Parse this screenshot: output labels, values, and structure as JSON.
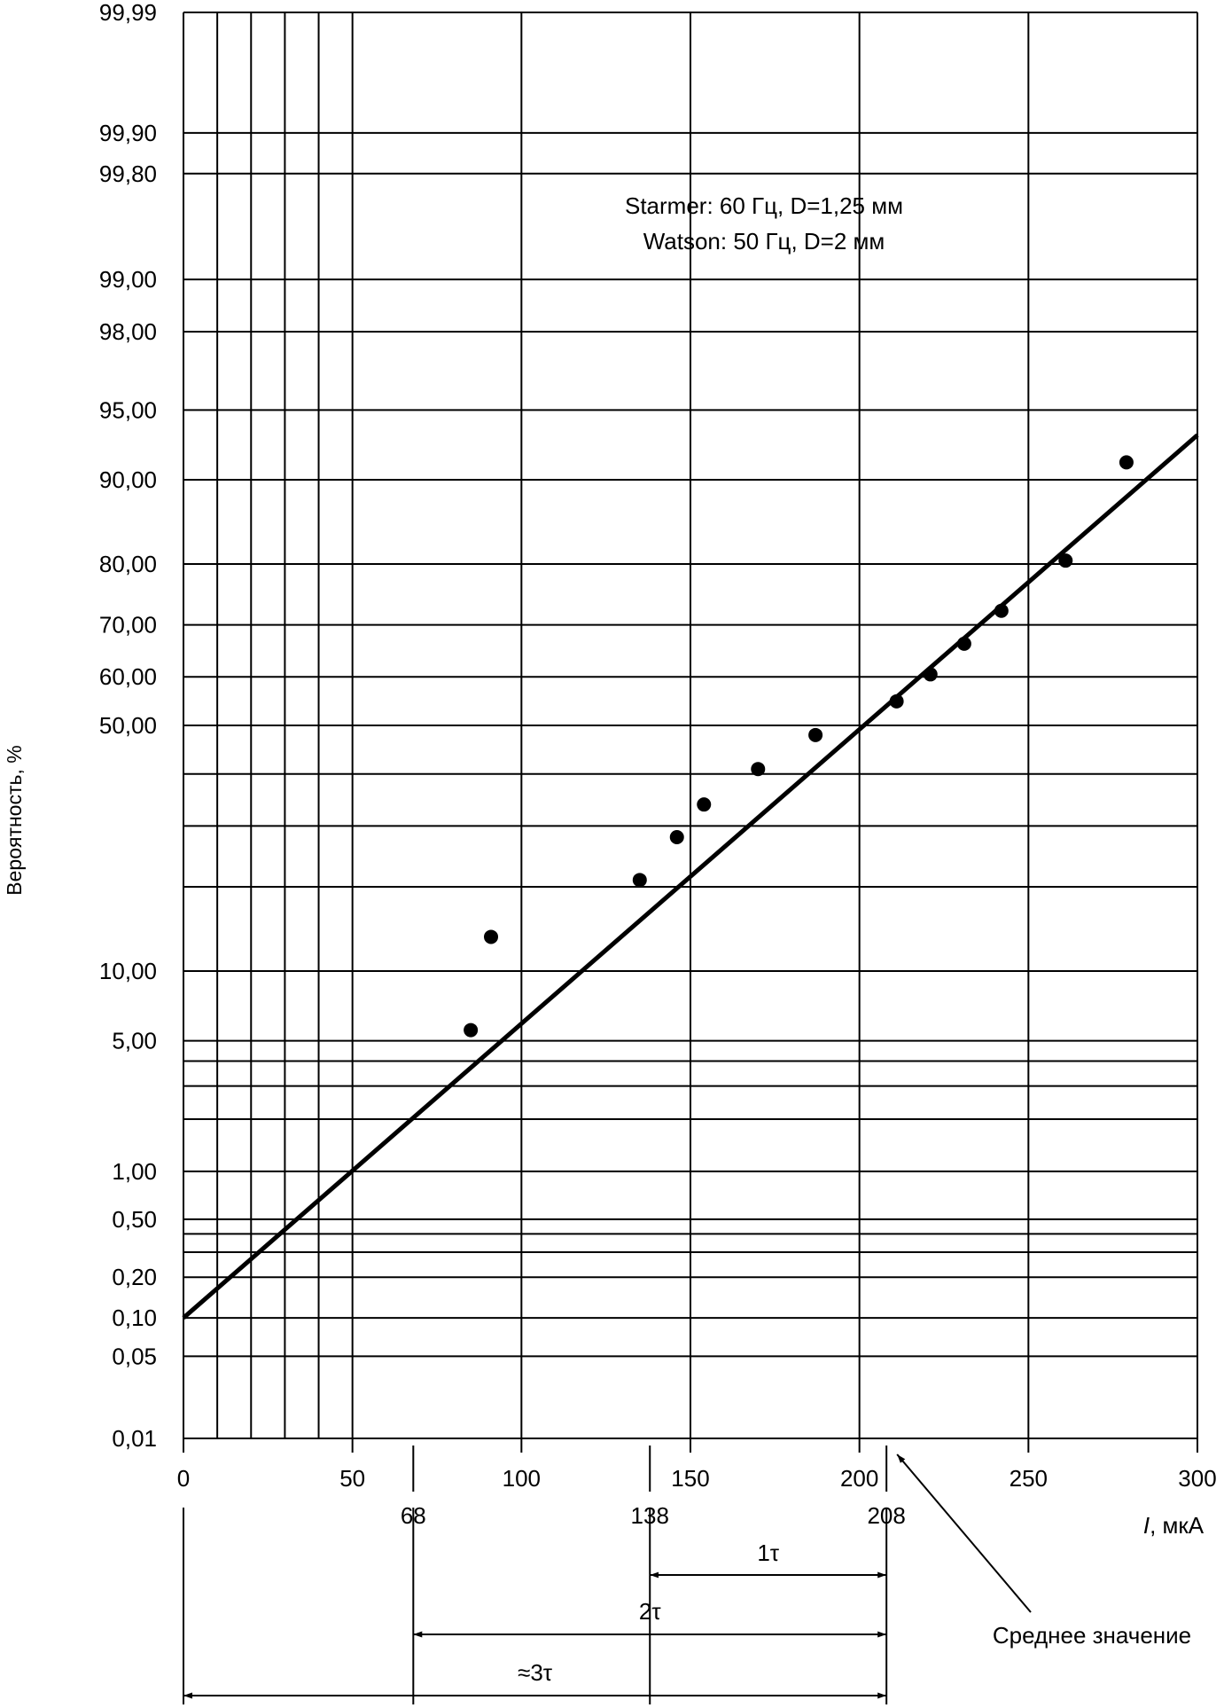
{
  "chart_data": {
    "type": "scatter",
    "title": "",
    "xlabel": "I, мкА",
    "ylabel": "Вероятность, %",
    "xlim": [
      0,
      300
    ],
    "x_scale": "linear",
    "y_scale": "probit",
    "legend_lines": [
      "Starmer: 60 Гц, D=1,25 мм",
      "Watson: 50 Гц, D=2 мм"
    ],
    "x_ticks": [
      {
        "value": 0,
        "label": "0"
      },
      {
        "value": 50,
        "label": "50"
      },
      {
        "value": 100,
        "label": "100"
      },
      {
        "value": 150,
        "label": "150"
      },
      {
        "value": 200,
        "label": "200"
      },
      {
        "value": 250,
        "label": "250"
      },
      {
        "value": 300,
        "label": "300"
      }
    ],
    "x_minor_gridlines": [
      10,
      20,
      30,
      40
    ],
    "y_ticks": [
      {
        "value": 99.99,
        "label": "99,99"
      },
      {
        "value": 99.9,
        "label": "99,90"
      },
      {
        "value": 99.8,
        "label": "99,80"
      },
      {
        "value": 99.0,
        "label": "99,00"
      },
      {
        "value": 98.0,
        "label": "98,00"
      },
      {
        "value": 95.0,
        "label": "95,00"
      },
      {
        "value": 90.0,
        "label": "90,00"
      },
      {
        "value": 80.0,
        "label": "80,00"
      },
      {
        "value": 70.0,
        "label": "70,00"
      },
      {
        "value": 60.0,
        "label": "60,00"
      },
      {
        "value": 50.0,
        "label": "50,00"
      },
      {
        "value": 10.0,
        "label": "10,00"
      },
      {
        "value": 5.0,
        "label": "5,00"
      },
      {
        "value": 1.0,
        "label": "1,00"
      },
      {
        "value": 0.5,
        "label": "0,50"
      },
      {
        "value": 0.2,
        "label": "0,20"
      },
      {
        "value": 0.1,
        "label": "0,10"
      },
      {
        "value": 0.05,
        "label": "0,05"
      },
      {
        "value": 0.01,
        "label": "0,01"
      }
    ],
    "y_gridlines": [
      99.99,
      99.9,
      99.8,
      99.0,
      98.0,
      95.0,
      90.0,
      80.0,
      70.0,
      60.0,
      50.0,
      40.0,
      30.0,
      20.0,
      10.0,
      5.0,
      4.0,
      3.0,
      2.0,
      1.0,
      0.5,
      0.4,
      0.3,
      0.2,
      0.1,
      0.05,
      0.01
    ],
    "grid": true,
    "points": [
      {
        "x": 85,
        "y": 5.6
      },
      {
        "x": 91,
        "y": 13.5
      },
      {
        "x": 135,
        "y": 21.0
      },
      {
        "x": 146,
        "y": 28.0
      },
      {
        "x": 154,
        "y": 34.0
      },
      {
        "x": 170,
        "y": 41.0
      },
      {
        "x": 187,
        "y": 48.0
      },
      {
        "x": 211,
        "y": 55.0
      },
      {
        "x": 221,
        "y": 60.5
      },
      {
        "x": 231,
        "y": 66.5
      },
      {
        "x": 242,
        "y": 72.5
      },
      {
        "x": 261,
        "y": 80.5
      },
      {
        "x": 279,
        "y": 91.5
      }
    ],
    "fit_line": [
      {
        "x": 0,
        "y": 0.1
      },
      {
        "x": 300,
        "y": 93.5
      }
    ],
    "mean_value": 208,
    "mean_label": "Среднее значение",
    "secondary_ticks": [
      {
        "value": 68,
        "label": "68"
      },
      {
        "value": 138,
        "label": "138"
      },
      {
        "value": 208,
        "label": "208"
      }
    ],
    "spans": [
      {
        "from": 138,
        "to": 208,
        "label": "1τ"
      },
      {
        "from": 68,
        "to": 208,
        "label": "2τ"
      },
      {
        "from": 0,
        "to": 208,
        "label": "≈3τ"
      }
    ]
  }
}
